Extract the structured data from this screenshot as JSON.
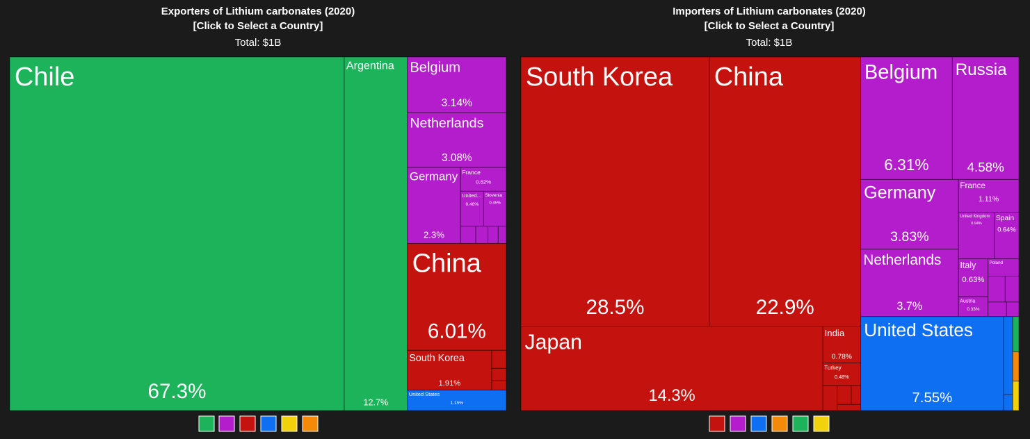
{
  "chart_data": [
    {
      "type": "treemap",
      "title": "Exporters of Lithium carbonates (2020)",
      "subtitle": "[Click to Select a Country]",
      "total": "Total: $1B",
      "series": [
        {
          "color": "#1cb35a",
          "names": [
            "Chile",
            "Argentina"
          ],
          "values": [
            67.3,
            12.7
          ],
          "value_labels": [
            "67.3%",
            "12.7%"
          ]
        },
        {
          "color": "#b31dcb",
          "names": [
            "Belgium",
            "Netherlands",
            "Germany",
            "France",
            "United…",
            "Slovenia",
            null,
            null,
            null,
            null
          ],
          "values": [
            3.14,
            3.08,
            2.3,
            0.62,
            0.46,
            0.45,
            0.15,
            0.12,
            0.1,
            0.08
          ],
          "value_labels": [
            "3.14%",
            "3.08%",
            "2.3%",
            "0.62%",
            "0.46%",
            "0.45%",
            null,
            null,
            null,
            null
          ]
        },
        {
          "color": "#c4130e",
          "names": [
            "China",
            "South Korea",
            null,
            null,
            null
          ],
          "values": [
            6.01,
            1.91,
            0.15,
            0.1,
            0.08
          ],
          "value_labels": [
            "6.01%",
            "1.91%",
            null,
            null,
            null
          ]
        },
        {
          "color": "#0e6ff2",
          "names": [
            "United States"
          ],
          "values": [
            1.15
          ],
          "value_labels": [
            "1.15%"
          ]
        }
      ]
    },
    {
      "type": "treemap",
      "title": "Importers of Lithium carbonates (2020)",
      "subtitle": "[Click to Select a Country]",
      "total": "Total: $1B",
      "series": [
        {
          "color": "#c4130e",
          "names": [
            "South Korea",
            "China",
            "Japan",
            "India",
            "Turkey",
            null,
            null,
            null,
            null
          ],
          "values": [
            28.5,
            22.9,
            14.3,
            0.78,
            0.48,
            0.2,
            0.15,
            0.1,
            0.08
          ],
          "value_labels": [
            "28.5%",
            "22.9%",
            "14.3%",
            "0.78%",
            "0.48%",
            null,
            null,
            null,
            null
          ]
        },
        {
          "color": "#b31dcb",
          "names": [
            "Belgium",
            "Russia",
            "Germany",
            "Netherlands",
            "France",
            "United Kingdom",
            "Spain",
            "Italy",
            "Austria",
            "Poland",
            null,
            null,
            null,
            null
          ],
          "values": [
            6.31,
            4.58,
            3.83,
            3.7,
            1.11,
            0.94,
            0.64,
            0.63,
            0.33,
            0.3,
            0.25,
            0.2,
            0.15,
            0.1
          ],
          "value_labels": [
            "6.31%",
            "4.58%",
            "3.83%",
            "3.7%",
            "1.11%",
            "0.94%",
            "0.64%",
            "0.63%",
            "0.33%",
            null,
            null,
            null,
            null,
            null
          ]
        },
        {
          "color": "#0e6ff2",
          "names": [
            "United States",
            null,
            null
          ],
          "values": [
            7.55,
            0.4,
            0.08
          ],
          "value_labels": [
            "7.55%",
            null,
            null
          ]
        },
        {
          "color": "#1cb35a",
          "names": [
            null
          ],
          "values": [
            0.12
          ],
          "value_labels": [
            null
          ]
        },
        {
          "color": "#f58a0a",
          "names": [
            null
          ],
          "values": [
            0.1
          ],
          "value_labels": [
            null
          ]
        },
        {
          "color": "#f2d20a",
          "names": [
            null
          ],
          "values": [
            0.1
          ],
          "value_labels": [
            null
          ]
        }
      ]
    }
  ]
}
